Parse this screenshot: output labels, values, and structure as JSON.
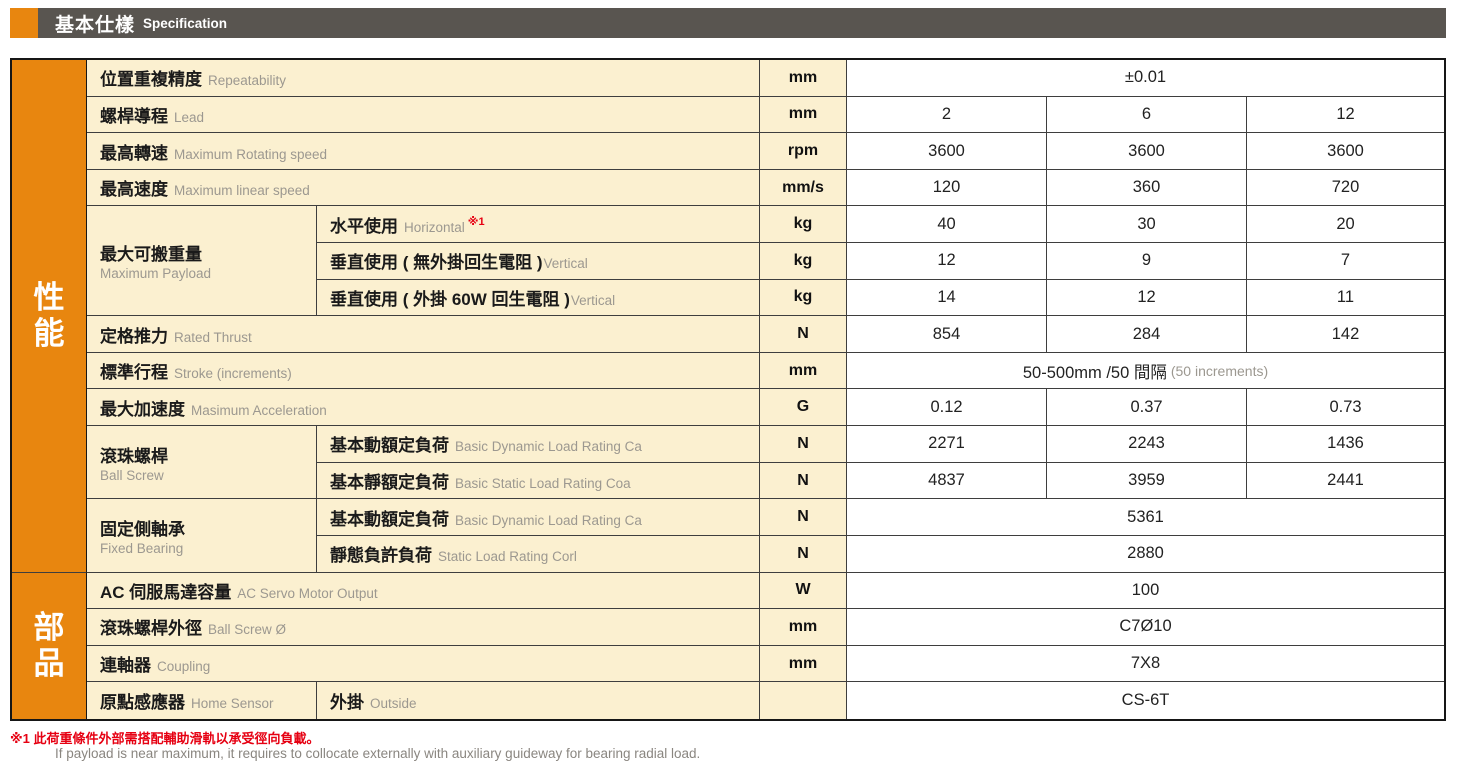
{
  "header": {
    "zh": "基本仕樣",
    "en": "Specification"
  },
  "sections": {
    "performance": "性能",
    "parts": "部品"
  },
  "colors": {
    "accent_orange": "#E8860F",
    "header_bar": "#595550",
    "cell_cream": "#FBF0D0",
    "note_red": "#E60012",
    "secondary_text_gray": "#9C9890"
  },
  "rows": {
    "repeatability": {
      "zh": "位置重複精度",
      "en": "Repeatability",
      "unit": "mm",
      "value": "±0.01"
    },
    "lead": {
      "zh": "螺桿導程",
      "en": "Lead",
      "unit": "mm",
      "v1": "2",
      "v2": "6",
      "v3": "12"
    },
    "max_rotating_speed": {
      "zh": "最高轉速",
      "en": "Maximum Rotating speed",
      "unit": "rpm",
      "v1": "3600",
      "v2": "3600",
      "v3": "3600"
    },
    "max_linear_speed": {
      "zh": "最高速度",
      "en": "Maximum linear speed",
      "unit": "mm/s",
      "v1": "120",
      "v2": "360",
      "v3": "720"
    },
    "payload": {
      "zh": "最大可搬重量",
      "en": "Maximum Payload",
      "horizontal": {
        "zh": "水平使用",
        "en": "Horizontal",
        "ref": "※1",
        "unit": "kg",
        "v1": "40",
        "v2": "30",
        "v3": "20"
      },
      "vertical_no_regen": {
        "zh": "垂直使用 ( 無外掛回生電阻 )",
        "en": "Vertical",
        "unit": "kg",
        "v1": "12",
        "v2": "9",
        "v3": "7"
      },
      "vertical_60w": {
        "zh": "垂直使用 ( 外掛 60W 回生電阻 )",
        "en": "Vertical",
        "unit": "kg",
        "v1": "14",
        "v2": "12",
        "v3": "11"
      }
    },
    "rated_thrust": {
      "zh": "定格推力",
      "en": "Rated Thrust",
      "unit": "N",
      "v1": "854",
      "v2": "284",
      "v3": "142"
    },
    "stroke": {
      "zh": "標準行程",
      "en": "Stroke (increments)",
      "unit": "mm",
      "value": "50-500mm /50 間隔",
      "note": "(50 increments)"
    },
    "max_acceleration": {
      "zh": "最大加速度",
      "en": "Masimum Acceleration",
      "unit": "G",
      "v1": "0.12",
      "v2": "0.37",
      "v3": "0.73"
    },
    "ball_screw": {
      "zh": "滾珠螺桿",
      "en": "Ball Screw",
      "dynamic": {
        "zh": "基本動額定負荷",
        "en": "Basic Dynamic Load Rating Ca",
        "unit": "N",
        "v1": "2271",
        "v2": "2243",
        "v3": "1436"
      },
      "static": {
        "zh": "基本靜額定負荷",
        "en": "Basic Static Load Rating Coa",
        "unit": "N",
        "v1": "4837",
        "v2": "3959",
        "v3": "2441"
      }
    },
    "fixed_bearing": {
      "zh": "固定側軸承",
      "en": "Fixed Bearing",
      "dynamic": {
        "zh": "基本動額定負荷",
        "en": "Basic Dynamic Load Rating Ca",
        "unit": "N",
        "value": "5361"
      },
      "static": {
        "zh": "靜態負許負荷",
        "en": "Static Load Rating Corl",
        "unit": "N",
        "value": "2880"
      }
    },
    "servo_output": {
      "zh": "AC 伺服馬達容量",
      "en": "AC Servo Motor Output",
      "unit": "W",
      "value": "100"
    },
    "ball_screw_od": {
      "zh": "滾珠螺桿外徑",
      "en": "Ball Screw Ø",
      "unit": "mm",
      "value": "C7Ø10"
    },
    "coupling": {
      "zh": "連軸器",
      "en": "Coupling",
      "unit": "mm",
      "value": "7X8"
    },
    "home_sensor": {
      "zh": "原點感應器",
      "en": "Home Sensor",
      "sub_zh": "外掛",
      "sub_en": "Outside",
      "value": "CS-6T"
    }
  },
  "footnote": {
    "zh": "※1 此荷重條件外部需搭配輔助滑軌以承受徑向負載。",
    "en": "If payload is near maximum, it requires to collocate externally with auxiliary guideway for bearing radial load."
  }
}
